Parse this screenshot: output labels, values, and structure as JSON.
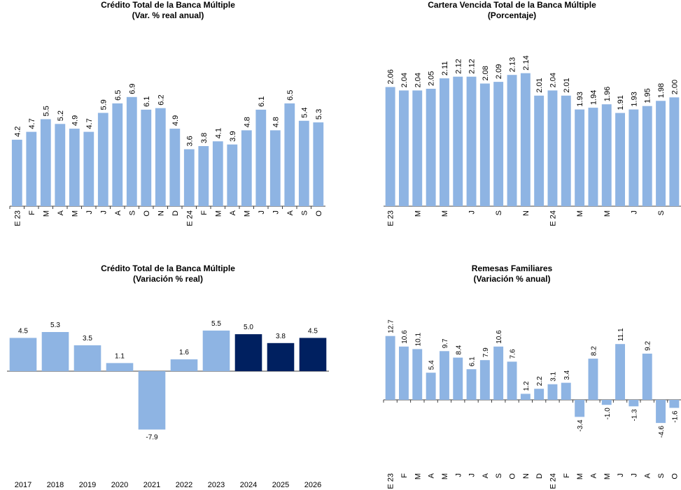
{
  "chart_data": [
    {
      "id": "credito-mensual",
      "type": "bar",
      "title": "Crédito Total de la Banca Múltiple",
      "subtitle": "(Var. % real anual)",
      "categories": [
        "E 23",
        "F",
        "M",
        "A",
        "M",
        "J",
        "J",
        "A",
        "S",
        "O",
        "N",
        "D",
        "E 24",
        "F",
        "M",
        "A",
        "M",
        "J",
        "J",
        "A",
        "S",
        "O"
      ],
      "values": [
        4.2,
        4.7,
        5.5,
        5.2,
        4.9,
        4.7,
        5.9,
        6.5,
        6.9,
        6.1,
        6.2,
        4.9,
        3.6,
        3.8,
        4.1,
        3.9,
        4.8,
        6.1,
        4.8,
        6.5,
        5.4,
        5.3
      ],
      "value_labels": [
        "4.2",
        "4.7",
        "5.5",
        "5.2",
        "4.9",
        "4.7",
        "5.9",
        "6.5",
        "6.9",
        "6.1",
        "6.2",
        "4.9",
        "3.6",
        "3.8",
        "4.1",
        "3.9",
        "4.8",
        "6.1",
        "4.8",
        "6.5",
        "5.4",
        "5.3"
      ],
      "ylim": [
        0,
        9.5
      ],
      "bar_color": "#8eb4e3",
      "grid": false
    },
    {
      "id": "cartera-vencida",
      "type": "bar",
      "title": "Cartera Vencida Total de la Banca Múltiple",
      "subtitle": "(Porcentaje)",
      "categories": [
        "E 23",
        "",
        "M",
        "",
        "M",
        "",
        "J",
        "",
        "S",
        "",
        "N",
        "",
        "E 24",
        "",
        "M",
        "",
        "M",
        "",
        "J",
        "",
        "S",
        ""
      ],
      "values": [
        2.06,
        2.04,
        2.04,
        2.05,
        2.11,
        2.12,
        2.12,
        2.08,
        2.09,
        2.13,
        2.14,
        2.01,
        2.04,
        2.01,
        1.93,
        1.94,
        1.96,
        1.91,
        1.93,
        1.95,
        1.98,
        2.0
      ],
      "value_labels": [
        "2.06",
        "2.04",
        "2.04",
        "2.05",
        "2.11",
        "2.12",
        "2.12",
        "2.08",
        "2.09",
        "2.13",
        "2.14",
        "2.01",
        "2.04",
        "2.01",
        "1.93",
        "1.94",
        "1.96",
        "1.91",
        "1.93",
        "1.95",
        "1.98",
        "2.00"
      ],
      "ylim": [
        1.37,
        2.24
      ],
      "bar_color": "#8eb4e3",
      "grid": false
    },
    {
      "id": "credito-anual",
      "type": "bar",
      "title": "Crédito Total de la Banca Múltiple",
      "subtitle": "(Variación % real)",
      "categories": [
        "2017",
        "2018",
        "2019",
        "2020",
        "2021",
        "2022",
        "2023",
        "2024",
        "2025",
        "2026"
      ],
      "values": [
        4.5,
        5.3,
        3.5,
        1.1,
        -7.9,
        1.6,
        5.5,
        5.0,
        3.8,
        4.5
      ],
      "value_labels": [
        "4.5",
        "5.3",
        "3.5",
        "1.1",
        "-7.9",
        "1.6",
        "5.5",
        "5.0",
        "3.8",
        "4.5"
      ],
      "bar_colors": [
        "#8eb4e3",
        "#8eb4e3",
        "#8eb4e3",
        "#8eb4e3",
        "#8eb4e3",
        "#8eb4e3",
        "#8eb4e3",
        "#002060",
        "#002060",
        "#002060"
      ],
      "ylim": [
        -10,
        7
      ],
      "grid": false
    },
    {
      "id": "remesas",
      "type": "bar",
      "title": "Remesas Familiares",
      "subtitle": "(Variación % anual)",
      "categories": [
        "E 23",
        "F",
        "M",
        "A",
        "M",
        "J",
        "J",
        "A",
        "S",
        "O",
        "N",
        "D",
        "E 24",
        "F",
        "M",
        "A",
        "M",
        "J",
        "J",
        "A",
        "S",
        "O"
      ],
      "values": [
        12.7,
        10.6,
        10.1,
        5.4,
        9.7,
        8.4,
        6.1,
        7.9,
        10.6,
        7.6,
        1.2,
        2.2,
        3.1,
        3.4,
        -3.4,
        8.2,
        -1.0,
        11.1,
        -1.3,
        9.2,
        -4.6,
        -1.6
      ],
      "value_labels": [
        "12.7",
        "10.6",
        "10.1",
        "5.4",
        "9.7",
        "8.4",
        "6.1",
        "7.9",
        "10.6",
        "7.6",
        "1.2",
        "2.2",
        "3.1",
        "3.4",
        "-3.4",
        "8.2",
        "-1.0",
        "11.1",
        "-1.3",
        "9.2",
        "-4.6",
        "-1.6"
      ],
      "ylim": [
        -11,
        16
      ],
      "bar_color": "#8eb4e3",
      "grid": false
    }
  ]
}
